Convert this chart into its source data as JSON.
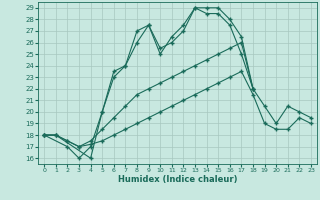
{
  "xlabel": "Humidex (Indice chaleur)",
  "x_values": [
    0,
    1,
    2,
    3,
    4,
    5,
    6,
    7,
    8,
    9,
    10,
    11,
    12,
    13,
    14,
    15,
    16,
    17,
    18,
    19,
    20,
    21,
    22,
    23
  ],
  "line1": [
    18,
    18,
    null,
    null,
    16,
    20,
    23.5,
    24,
    27,
    27.5,
    25,
    26.5,
    27.5,
    29,
    29,
    29,
    28,
    26.5,
    22,
    null,
    null,
    null,
    null,
    null
  ],
  "line2": [
    18,
    null,
    17,
    16,
    17,
    20,
    23,
    24,
    26,
    27.5,
    25.5,
    26,
    27,
    29,
    28.5,
    28.5,
    27.5,
    25,
    22,
    null,
    null,
    null,
    null,
    null
  ],
  "line3": [
    18,
    18,
    17.5,
    17,
    17.5,
    18.5,
    19.5,
    20.5,
    21.5,
    22.0,
    22.5,
    23.0,
    23.5,
    24.0,
    24.5,
    25.0,
    25.5,
    26.0,
    22,
    20.5,
    19.0,
    20.5,
    20.0,
    19.5
  ],
  "line4": [
    18,
    18,
    17.5,
    17,
    17.2,
    17.5,
    18.0,
    18.5,
    19.0,
    19.5,
    20.0,
    20.5,
    21.0,
    21.5,
    22.0,
    22.5,
    23.0,
    23.5,
    21.5,
    19.0,
    18.5,
    18.5,
    19.5,
    19.0
  ],
  "line_color": "#1a6b5a",
  "bg_color": "#c8e8e0",
  "grid_color": "#a8c8c0",
  "ylim": [
    15.5,
    29.5
  ],
  "xlim": [
    -0.5,
    23.5
  ],
  "yticks": [
    16,
    17,
    18,
    19,
    20,
    21,
    22,
    23,
    24,
    25,
    26,
    27,
    28,
    29
  ],
  "xticks": [
    0,
    1,
    2,
    3,
    4,
    5,
    6,
    7,
    8,
    9,
    10,
    11,
    12,
    13,
    14,
    15,
    16,
    17,
    18,
    19,
    20,
    21,
    22,
    23
  ]
}
